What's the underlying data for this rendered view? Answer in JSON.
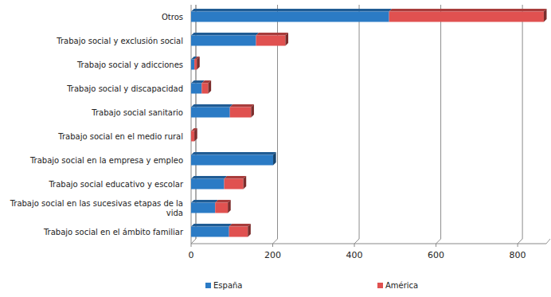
{
  "chart_data": {
    "type": "bar",
    "orientation": "horizontal",
    "stacked": true,
    "grid": true,
    "legend": "bottom",
    "categories": [
      "Otros",
      "Trabajo social y exclusión social",
      "Trabajo social y adicciones",
      "Trabajo social y discapacidad",
      "Trabajo social sanitario",
      "Trabajo social en el medio rural",
      "Trabajo social en la empresa y empleo",
      "Trabajo social educativo y escolar",
      "Trabajo social en las sucesivas etapas de la vida",
      "Trabajo social en el ámbito familiar"
    ],
    "series": [
      {
        "name": "España",
        "color": "#2b7bc5",
        "values": [
          485,
          159,
          8,
          26,
          95,
          0,
          201,
          81,
          59,
          93
        ]
      },
      {
        "name": "América",
        "color": "#e05150",
        "values": [
          379,
          72,
          6,
          16,
          52,
          8,
          0,
          47,
          31,
          46
        ]
      }
    ],
    "xlim": [
      0,
      870
    ],
    "xticks": [
      0,
      200,
      400,
      600,
      800
    ]
  }
}
